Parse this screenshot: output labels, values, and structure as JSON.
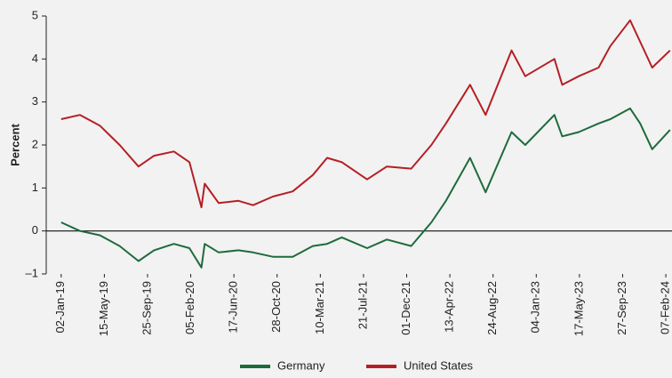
{
  "chart_data": {
    "type": "line",
    "ylabel": "Percent",
    "x": [
      "2019-01-02",
      "2019-03-01",
      "2019-05-01",
      "2019-07-01",
      "2019-08-28",
      "2019-10-15",
      "2019-12-15",
      "2020-02-01",
      "2020-03-09",
      "2020-03-19",
      "2020-05-01",
      "2020-07-01",
      "2020-08-15",
      "2020-10-15",
      "2020-12-15",
      "2021-02-15",
      "2021-03-31",
      "2021-05-15",
      "2021-08-01",
      "2021-10-01",
      "2021-12-15",
      "2022-02-15",
      "2022-04-01",
      "2022-06-14",
      "2022-08-01",
      "2022-10-20",
      "2022-12-01",
      "2023-03-01",
      "2023-03-25",
      "2023-05-15",
      "2023-07-15",
      "2023-08-20",
      "2023-10-20",
      "2023-11-20",
      "2023-12-27",
      "2024-02-20"
    ],
    "series": [
      {
        "name": "Germany",
        "color": "#1e6b3c",
        "values": [
          0.2,
          0.0,
          -0.1,
          -0.35,
          -0.7,
          -0.45,
          -0.3,
          -0.4,
          -0.85,
          -0.3,
          -0.5,
          -0.45,
          -0.5,
          -0.6,
          -0.6,
          -0.35,
          -0.3,
          -0.15,
          -0.4,
          -0.2,
          -0.35,
          0.2,
          0.7,
          1.7,
          0.9,
          2.3,
          2.0,
          2.7,
          2.2,
          2.3,
          2.5,
          2.6,
          2.85,
          2.5,
          1.9,
          2.35
        ]
      },
      {
        "name": "United States",
        "color": "#b51f24",
        "values": [
          2.6,
          2.7,
          2.45,
          2.0,
          1.5,
          1.75,
          1.85,
          1.6,
          0.55,
          1.1,
          0.65,
          0.7,
          0.6,
          0.8,
          0.92,
          1.3,
          1.7,
          1.6,
          1.2,
          1.5,
          1.45,
          2.0,
          2.5,
          3.4,
          2.7,
          4.2,
          3.6,
          4.0,
          3.4,
          3.6,
          3.8,
          4.3,
          4.9,
          4.4,
          3.8,
          4.2
        ]
      }
    ],
    "xlim": [
      "2018-11-17",
      "2024-02-26"
    ],
    "xticks": [
      {
        "value": "2019-01-02",
        "label": "02-Jan-19"
      },
      {
        "value": "2019-05-15",
        "label": "15-May-19"
      },
      {
        "value": "2019-09-25",
        "label": "25-Sep-19"
      },
      {
        "value": "2020-02-05",
        "label": "05-Feb-20"
      },
      {
        "value": "2020-06-17",
        "label": "17-Jun-20"
      },
      {
        "value": "2020-10-28",
        "label": "28-Oct-20"
      },
      {
        "value": "2021-03-10",
        "label": "10-Mar-21"
      },
      {
        "value": "2021-07-21",
        "label": "21-Jul-21"
      },
      {
        "value": "2021-12-01",
        "label": "01-Dec-21"
      },
      {
        "value": "2022-04-13",
        "label": "13-Apr-22"
      },
      {
        "value": "2022-08-24",
        "label": "24-Aug-22"
      },
      {
        "value": "2023-01-04",
        "label": "04-Jan-23"
      },
      {
        "value": "2023-05-17",
        "label": "17-May-23"
      },
      {
        "value": "2023-09-27",
        "label": "27-Sep-23"
      },
      {
        "value": "2024-02-07",
        "label": "07-Feb-24"
      }
    ],
    "ylim": [
      -1,
      5
    ],
    "yticks": [
      {
        "value": -1,
        "label": "–1"
      },
      0,
      1,
      2,
      3,
      4,
      5
    ],
    "legend": "bottom"
  }
}
